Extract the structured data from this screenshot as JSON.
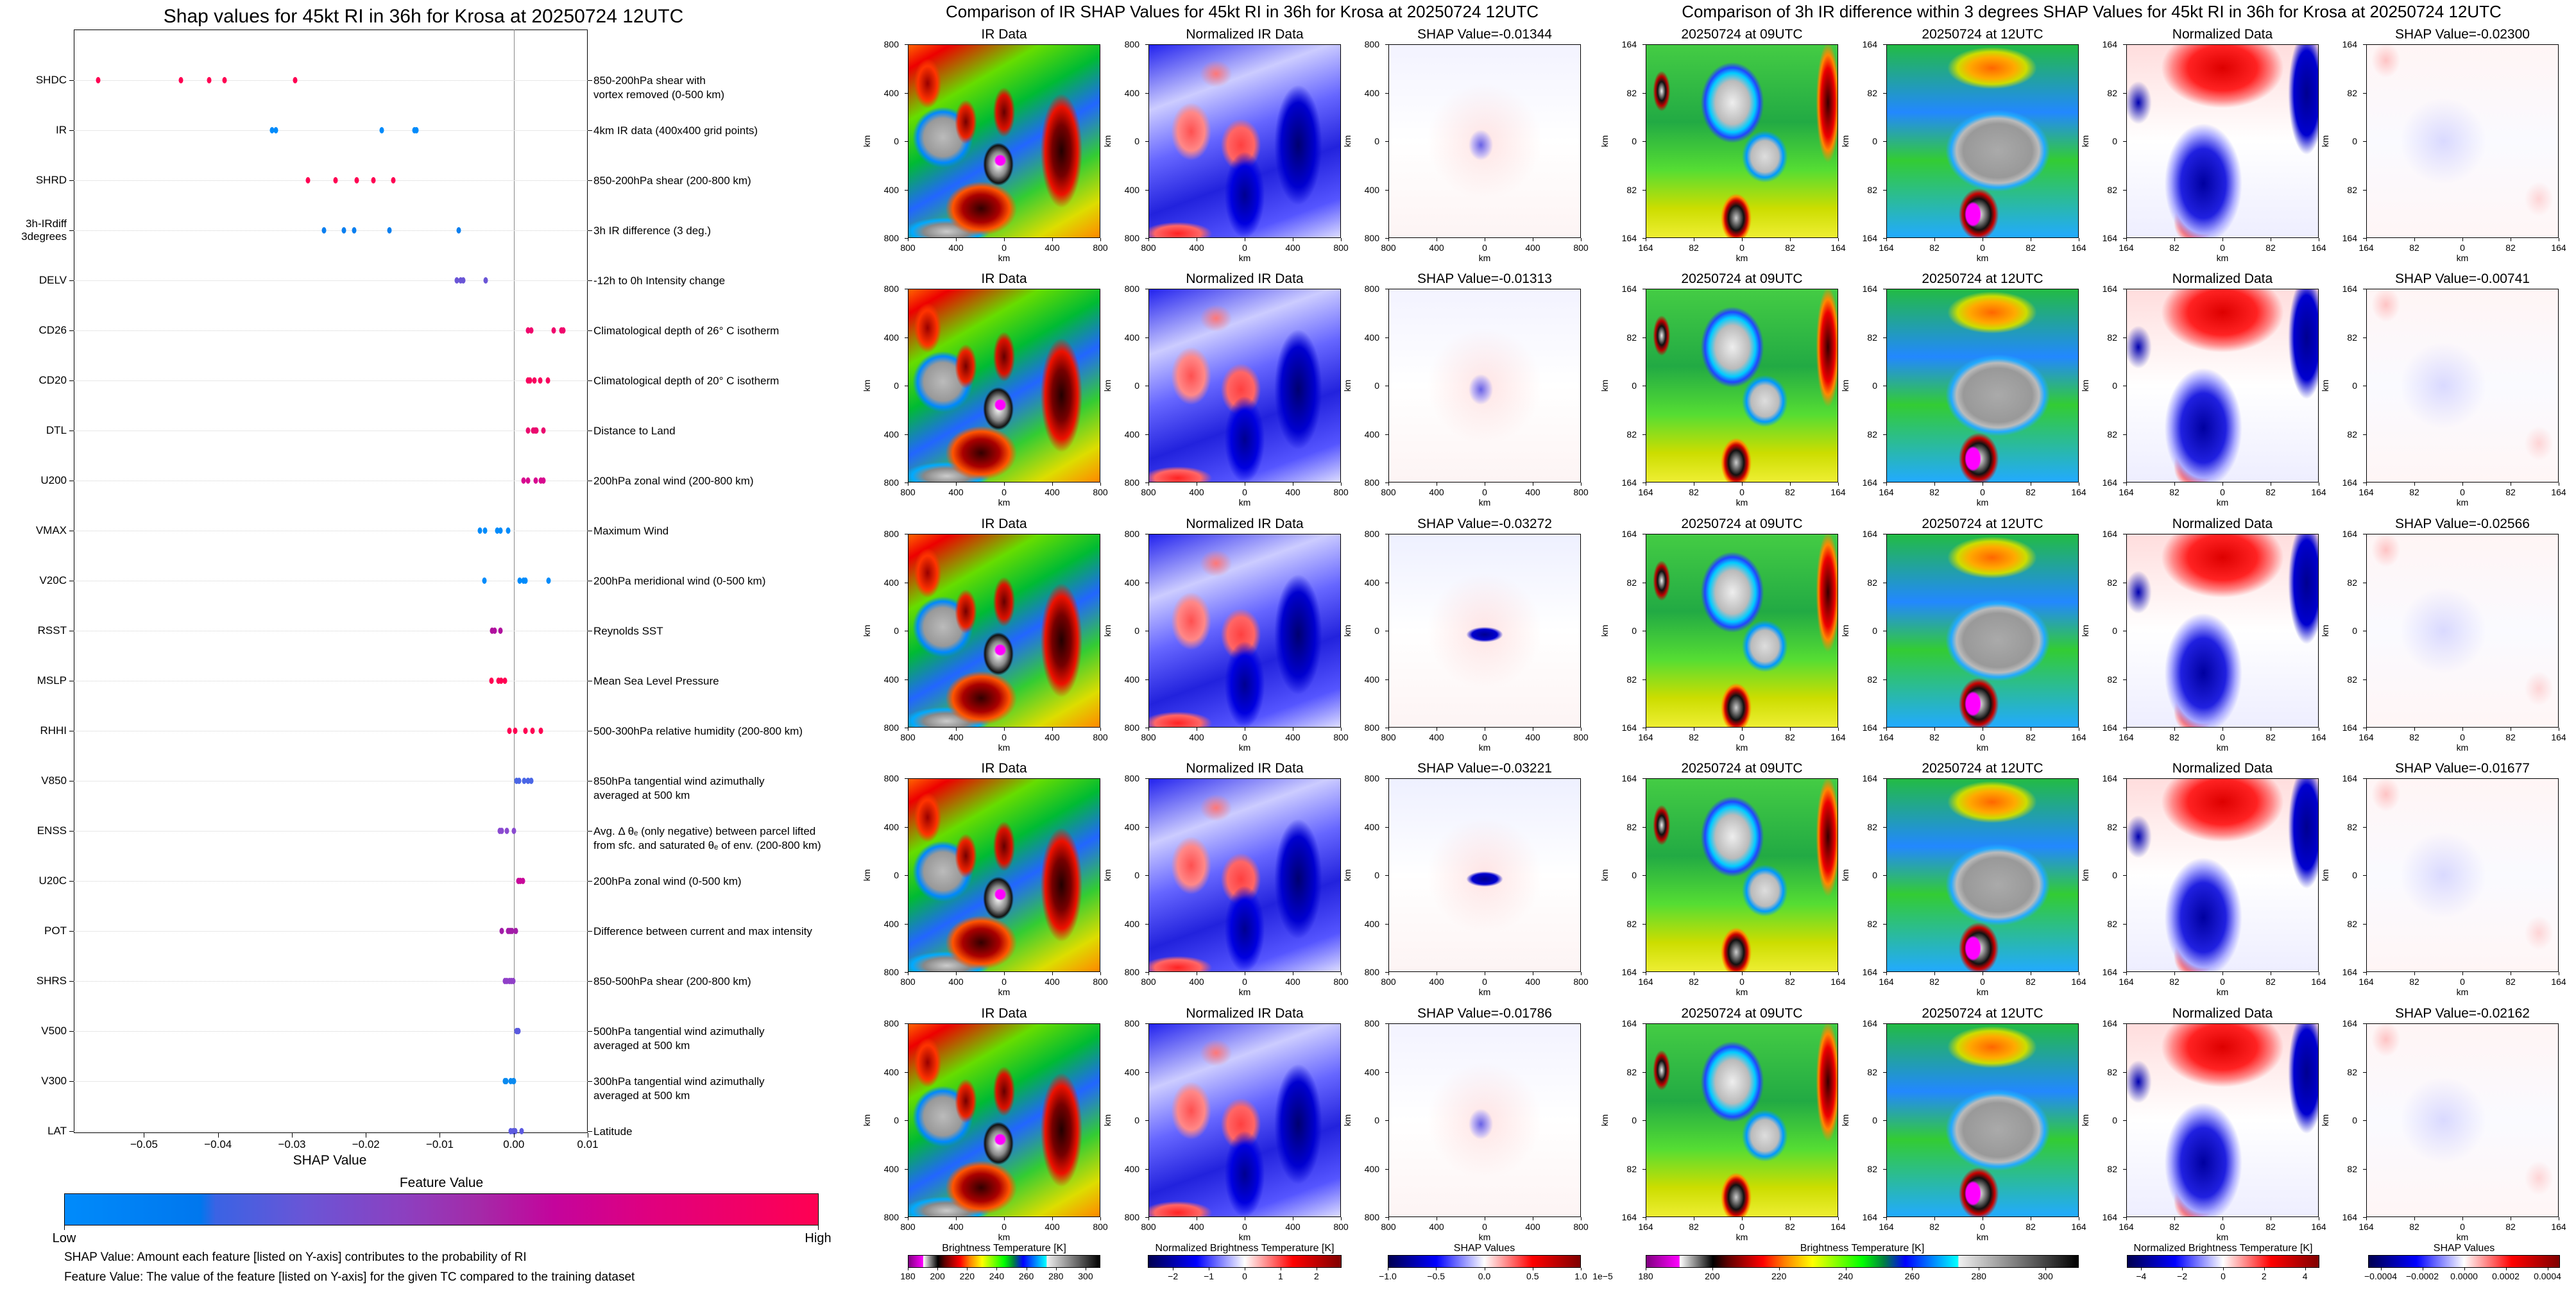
{
  "chart_data": [
    {
      "type": "scatter",
      "title": "Shap values for 45kt RI in 36h for Krosa at 20250724 12UTC",
      "xlabel": "SHAP Value",
      "xlim": [
        -0.0595,
        0.01
      ],
      "xticks": [
        -0.05,
        -0.04,
        -0.03,
        -0.02,
        -0.01,
        0.0,
        0.01
      ],
      "xtick_labels": [
        "−0.05",
        "−0.04",
        "−0.03",
        "−0.02",
        "−0.01",
        "0.00",
        "0.01"
      ],
      "grid": "dotted horizontal per feature",
      "zero_line": 0.0,
      "features": [
        {
          "code": "SHDC",
          "description": [
            "850-200hPa shear with",
            "vortex removed (0-500 km)"
          ],
          "color": "#ff0052",
          "values": [
            -0.0562,
            -0.045,
            -0.0412,
            -0.0391,
            -0.0296
          ]
        },
        {
          "code": "IR",
          "description": [
            "4km IR data (400x400 grid points)"
          ],
          "color": "#008bfb",
          "values": [
            -0.03272,
            -0.03221,
            -0.01786,
            -0.01344,
            -0.01313
          ]
        },
        {
          "code": "SHRD",
          "description": [
            "850-200hPa shear (200-800 km)"
          ],
          "color": "#ff0052",
          "values": [
            -0.0278,
            -0.0241,
            -0.0212,
            -0.019,
            -0.0163
          ]
        },
        {
          "code": "3h-IRdiff\n3degrees",
          "description": [
            "3h IR difference (3 deg.)"
          ],
          "color": "#0a7ff0",
          "values": [
            -0.02566,
            -0.023,
            -0.02162,
            -0.01677,
            -0.00741
          ]
        },
        {
          "code": "DELV",
          "description": [
            "-12h to 0h Intensity change"
          ],
          "color": "#6a55d6",
          "values": [
            -0.0077,
            -0.0072,
            -0.0068,
            -0.0038
          ]
        },
        {
          "code": "CD26",
          "description": [
            "Climatological depth of 26° C isotherm"
          ],
          "color": "#f0066c",
          "values": [
            0.0019,
            0.0024,
            0.0054,
            0.0064,
            0.0067
          ]
        },
        {
          "code": "CD20",
          "description": [
            "Climatological depth of 20° C isotherm"
          ],
          "color": "#f8045e",
          "values": [
            0.0019,
            0.0022,
            0.0028,
            0.0036,
            0.0046
          ]
        },
        {
          "code": "DTL",
          "description": [
            "Distance to Land"
          ],
          "color": "#ea0a6e",
          "values": [
            0.0019,
            0.0026,
            0.0029,
            0.0031,
            0.004
          ]
        },
        {
          "code": "U200",
          "description": [
            "200hPa zonal wind (200-800 km)"
          ],
          "color": "#d8088f",
          "values": [
            0.0013,
            0.0019,
            0.003,
            0.0037,
            0.004
          ]
        },
        {
          "code": "VMAX",
          "description": [
            "Maximum Wind"
          ],
          "color": "#008bfb",
          "values": [
            -0.0046,
            -0.0039,
            -0.0022,
            -0.0018,
            -0.0008
          ]
        },
        {
          "code": "V20C",
          "description": [
            "200hPa meridional wind (0-500 km)"
          ],
          "color": "#008bfb",
          "values": [
            -0.004,
            0.0008,
            0.0013,
            0.0016,
            0.0047
          ]
        },
        {
          "code": "RSST",
          "description": [
            "Reynolds SST"
          ],
          "color": "#b0109e",
          "values": [
            -0.0029,
            -0.0026,
            -0.0018
          ]
        },
        {
          "code": "MSLP",
          "description": [
            "Mean Sea Level Pressure"
          ],
          "color": "#ff0052",
          "values": [
            -0.003,
            -0.0021,
            -0.0017,
            -0.0012
          ]
        },
        {
          "code": "RHHI",
          "description": [
            "500-300hPa relative humidity (200-800 km)"
          ],
          "color": "#ff0052",
          "values": [
            -0.0006,
            0.0002,
            0.0016,
            0.0025,
            0.0037
          ]
        },
        {
          "code": "V850",
          "description": [
            "850hPa tangential wind azimuthally",
            "averaged at 500 km"
          ],
          "color": "#4a66e6",
          "values": [
            0.0004,
            0.0007,
            0.0014,
            0.0019,
            0.0024
          ]
        },
        {
          "code": "ENSS",
          "description": [
            "Avg. Δ θₑ (only negative) between parcel lifted",
            "from sfc. and saturated θₑ of env. (200-800 km)"
          ],
          "color": "#8a4ad0",
          "values": [
            -0.0019,
            -0.0016,
            -0.0009,
            0.0
          ]
        },
        {
          "code": "U20C",
          "description": [
            "200hPa zonal wind (0-500 km)"
          ],
          "color": "#c8089a",
          "values": [
            0.0006,
            0.0009,
            0.0012
          ]
        },
        {
          "code": "POT",
          "description": [
            "Difference between current and max intensity"
          ],
          "color": "#a21ca8",
          "values": [
            -0.0016,
            -0.0008,
            -0.0005,
            -0.0002,
            0.0003
          ]
        },
        {
          "code": "SHRS",
          "description": [
            "850-500hPa shear (200-800 km)"
          ],
          "color": "#9040c8",
          "values": [
            -0.0012,
            -0.0009,
            -0.0006,
            -0.0003,
            -0.0001
          ]
        },
        {
          "code": "V500",
          "description": [
            "500hPa tangential wind azimuthally",
            "averaged at 500 km"
          ],
          "color": "#5a5ae0",
          "values": [
            0.0004,
            0.0005,
            0.0006
          ]
        },
        {
          "code": "V300",
          "description": [
            "300hPa tangential wind azimuthally",
            "averaged at 500 km"
          ],
          "color": "#0a8af0",
          "values": [
            -0.0012,
            -0.001,
            -0.0004,
            -0.0001,
            0.0
          ]
        },
        {
          "code": "LAT",
          "description": [
            "Latitude"
          ],
          "color": "#5c5ae0",
          "values": [
            -0.0004,
            -0.0001,
            0.0002,
            0.0011
          ]
        }
      ],
      "colorbar": {
        "title": "Feature Value",
        "low": "Low",
        "high": "High",
        "low_color": "#008bfb",
        "high_color": "#ff0052"
      },
      "notes": [
        "SHAP Value: Amount each feature [listed on Y-axis] contributes to the probability of RI",
        "Feature Value: The value of the feature [listed on Y-axis] for the given TC compared to the training dataset"
      ]
    },
    {
      "type": "heatmap",
      "title": "Comparison of IR SHAP Values for 45kt RI in 36h for Krosa at 20250724 12UTC",
      "column_titles": [
        "IR Data",
        "Normalized IR Data"
      ],
      "shap_titles": [
        "SHAP Value=-0.01344",
        "SHAP Value=-0.01313",
        "SHAP Value=-0.03272",
        "SHAP Value=-0.03221",
        "SHAP Value=-0.01786"
      ],
      "tick_labels": [
        "800",
        "400",
        "0",
        "400",
        "800"
      ],
      "axis_label": "km",
      "colorbars": [
        {
          "title": "Brightness Temperature [K]",
          "range": [
            180,
            310
          ],
          "ticks": [
            180,
            200,
            220,
            240,
            260,
            280,
            300
          ],
          "labels": [
            "180",
            "200",
            "220",
            "240",
            "260",
            "280",
            "300"
          ],
          "cmap": "bt"
        },
        {
          "title": "Normalized Brightness Temperature [K]",
          "range": [
            -2.7,
            2.7
          ],
          "ticks": [
            -2,
            -1,
            0,
            1,
            2
          ],
          "labels": [
            "−2",
            "−1",
            "0",
            "1",
            "2"
          ],
          "cmap": "bwr"
        },
        {
          "title": "SHAP Values",
          "range": [
            -1.0,
            1.0
          ],
          "ticks": [
            -1.0,
            -0.5,
            0.0,
            0.5,
            1.0
          ],
          "labels": [
            "−1.0",
            "−0.5",
            "0.0",
            "0.5",
            "1.0"
          ],
          "cmap": "bwr",
          "offset": "1e−5"
        }
      ]
    },
    {
      "type": "heatmap",
      "title": "Comparison of 3h IR difference within 3 degrees SHAP Values for 45kt RI in 36h for Krosa at 20250724 12UTC",
      "column_titles": [
        "20250724 at 09UTC",
        "20250724 at 12UTC",
        "Normalized Data"
      ],
      "shap_titles": [
        "SHAP Value=-0.02300",
        "SHAP Value=-0.00741",
        "SHAP Value=-0.02566",
        "SHAP Value=-0.01677",
        "SHAP Value=-0.02162"
      ],
      "tick_labels": [
        "164",
        "82",
        "0",
        "82",
        "164"
      ],
      "axis_label": "km",
      "colorbars": [
        {
          "title": "Brightness Temperature [K]",
          "range": [
            180,
            310
          ],
          "ticks": [
            180,
            200,
            220,
            240,
            260,
            280,
            300
          ],
          "labels": [
            "180",
            "200",
            "220",
            "240",
            "260",
            "280",
            "300"
          ],
          "cmap": "bt"
        },
        {
          "title": "Normalized Brightness Temperature [K]",
          "range": [
            -4.7,
            4.7
          ],
          "ticks": [
            -4,
            -2,
            0,
            2,
            4
          ],
          "labels": [
            "−4",
            "−2",
            "0",
            "2",
            "4"
          ],
          "cmap": "bwr"
        },
        {
          "title": "SHAP Values",
          "range": [
            -0.00046,
            0.00046
          ],
          "ticks": [
            -0.0004,
            -0.0002,
            0.0,
            0.0002,
            0.0004
          ],
          "labels": [
            "−0.0004",
            "−0.0002",
            "0.0000",
            "0.0002",
            "0.0004"
          ],
          "cmap": "bwr"
        }
      ]
    }
  ]
}
